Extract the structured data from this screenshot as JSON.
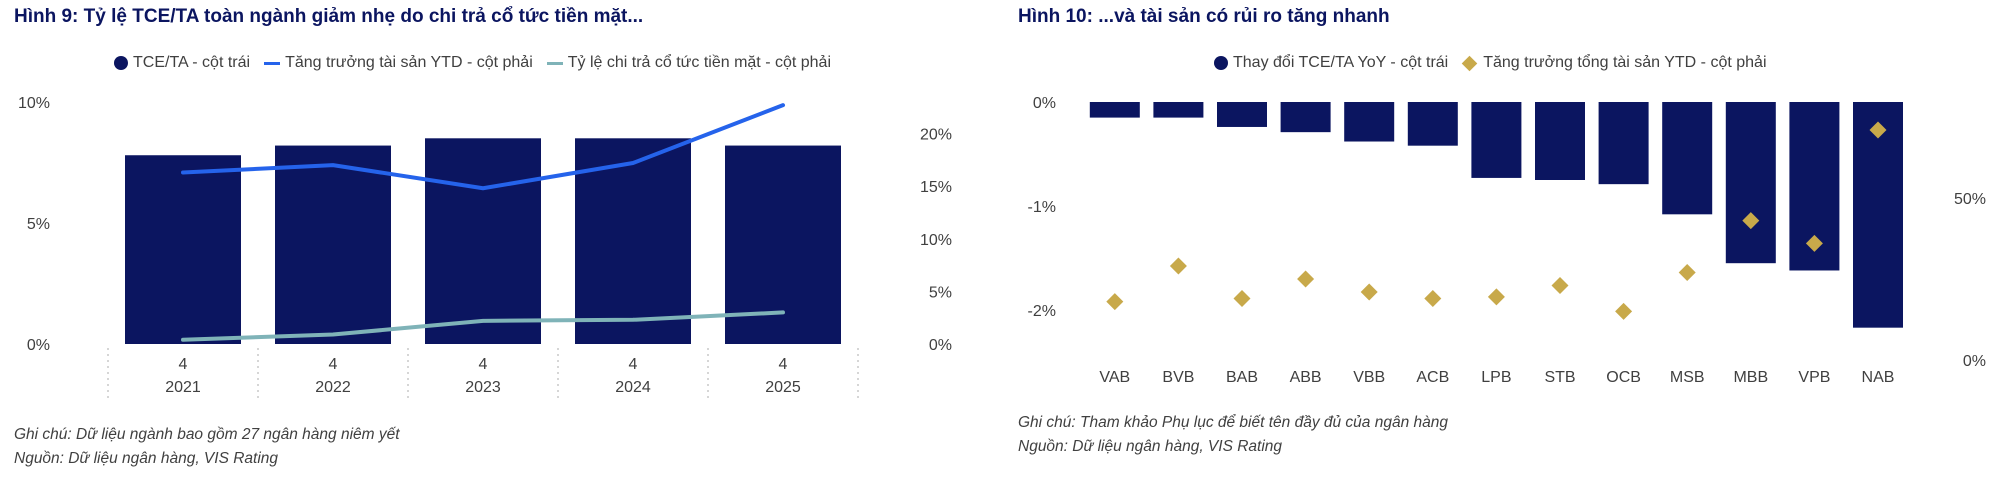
{
  "left": {
    "title": "Hình 9: Tỷ lệ TCE/TA toàn ngành giảm nhẹ do chi trả cổ tức tiền mặt...",
    "legend": [
      {
        "label": "TCE/TA - cột trái",
        "kind": "dot",
        "color": "#0b1560"
      },
      {
        "label": "Tăng trưởng tài sản YTD - cột phải",
        "kind": "line",
        "color": "#2563eb"
      },
      {
        "label": "Tỷ lệ chi trả cổ tức tiền mặt - cột phải",
        "kind": "line",
        "color": "#7fb3b8"
      }
    ],
    "note1": "Ghi chú: Dữ liệu ngành bao gồm 27 ngân hàng niêm yết",
    "note2": "Nguồn: Dữ liệu ngân hàng, VIS Rating"
  },
  "right": {
    "title": "Hình 10: ...và tài sản có rủi ro tăng nhanh",
    "legend": [
      {
        "label": "Thay đổi TCE/TA YoY - cột trái",
        "kind": "dot",
        "color": "#0b1560"
      },
      {
        "label": "Tăng trưởng tổng tài sản YTD - cột phải",
        "kind": "diamond",
        "color": "#c8a94a"
      }
    ],
    "note1": "Ghi chú: Tham khảo Phụ lục để biết tên đầy đủ của ngân hàng",
    "note2": "Nguồn: Dữ liệu ngân hàng, VIS Rating"
  },
  "chart_data": [
    {
      "type": "bar",
      "title": "Hình 9: Tỷ lệ TCE/TA toàn ngành giảm nhẹ do chi trả cổ tức tiền mặt...",
      "categories": [
        [
          "4",
          "2021"
        ],
        [
          "4",
          "2022"
        ],
        [
          "4",
          "2023"
        ],
        [
          "4",
          "2024"
        ],
        [
          "4",
          "2025"
        ]
      ],
      "y_left_ticks": [
        "0%",
        "5%",
        "10%"
      ],
      "y_left_range": [
        0,
        10
      ],
      "y_right_ticks": [
        "0%",
        "5%",
        "10%",
        "15%",
        "20%"
      ],
      "y_right_range": [
        0,
        23
      ],
      "series": [
        {
          "name": "TCE/TA - cột trái",
          "type": "bar",
          "axis": "left",
          "color": "#0b1560",
          "values": [
            7.8,
            8.2,
            8.5,
            8.5,
            8.2
          ]
        },
        {
          "name": "Tăng trưởng tài sản YTD - cột phải",
          "type": "line",
          "axis": "right",
          "color": "#2563eb",
          "values": [
            16.3,
            17.0,
            14.8,
            17.2,
            22.7
          ]
        },
        {
          "name": "Tỷ lệ chi trả cổ tức tiền mặt - cột phải",
          "type": "line",
          "axis": "right",
          "color": "#7fb3b8",
          "values": [
            0.4,
            0.9,
            2.2,
            2.3,
            3.0
          ]
        }
      ],
      "grid": false
    },
    {
      "type": "bar",
      "title": "Hình 10: ...và tài sản có rủi ro tăng nhanh",
      "categories": [
        "VAB",
        "BVB",
        "BAB",
        "ABB",
        "VBB",
        "ACB",
        "LPB",
        "STB",
        "OCB",
        "MSB",
        "MBB",
        "VPB",
        "NAB"
      ],
      "y_left_ticks": [
        "0%",
        "-1%",
        "-2%"
      ],
      "y_left_range": [
        -2.5,
        0
      ],
      "y_right_ticks": [
        "0%",
        "50%"
      ],
      "y_right_range": [
        0,
        80
      ],
      "series": [
        {
          "name": "Thay đổi TCE/TA YoY - cột trái",
          "type": "bar",
          "axis": "left",
          "color": "#0b1560",
          "values": [
            -0.15,
            -0.15,
            -0.24,
            -0.29,
            -0.38,
            -0.42,
            -0.73,
            -0.75,
            -0.79,
            -1.08,
            -1.55,
            -1.62,
            -2.17
          ]
        },
        {
          "name": "Tăng trưởng tổng tài sản YTD - cột phải",
          "type": "diamond",
          "axis": "right",
          "color": "#c8a94a",
          "values": [
            18,
            29,
            19,
            25,
            21,
            19,
            19.5,
            23,
            15,
            27,
            43,
            36,
            71
          ]
        }
      ],
      "grid": false
    }
  ]
}
